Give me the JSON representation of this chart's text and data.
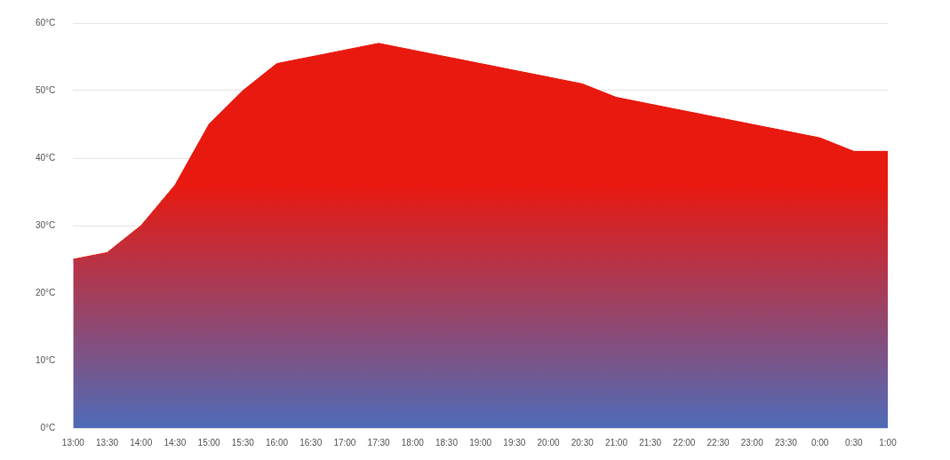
{
  "chart_data": {
    "type": "area",
    "categories": [
      "13:00",
      "13:30",
      "14:00",
      "14:30",
      "15:00",
      "15:30",
      "16:00",
      "16:30",
      "17:00",
      "17:30",
      "18:00",
      "18:30",
      "19:00",
      "19:30",
      "20:00",
      "20:30",
      "21:00",
      "21:30",
      "22:00",
      "22:30",
      "23:00",
      "23:30",
      "0:00",
      "0:30",
      "1:00"
    ],
    "series": [
      {
        "color": "#e8190f",
        "values": [
          25,
          26,
          30,
          36,
          45,
          50,
          54,
          55,
          56,
          57,
          56,
          55,
          54,
          53,
          52,
          51,
          49,
          48,
          47,
          46,
          45,
          44,
          43,
          41,
          41
        ]
      }
    ],
    "ylim": [
      0,
      60
    ],
    "yticks": [
      {
        "value": 0,
        "label": "0°C"
      },
      {
        "value": 10,
        "label": "10°C"
      },
      {
        "value": 20,
        "label": "20°C"
      },
      {
        "value": 30,
        "label": "30°C"
      },
      {
        "value": 40,
        "label": "40°C"
      },
      {
        "value": 50,
        "label": "50°C"
      },
      {
        "value": 60,
        "label": "60°C"
      }
    ],
    "grid": "y",
    "legend": false
  }
}
